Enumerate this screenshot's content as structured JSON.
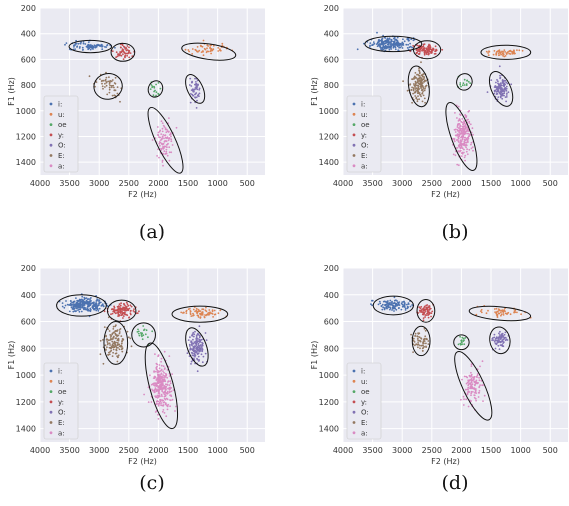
{
  "chart_data": [
    {
      "type": "scatter",
      "caption": "(a)",
      "xlabel": "F2 (Hz)",
      "ylabel": "F1 (Hz)",
      "xlim": [
        4000,
        200
      ],
      "ylim": [
        1500,
        200
      ],
      "xticks": [
        4000,
        3500,
        3000,
        2500,
        2000,
        1500,
        1000,
        500
      ],
      "yticks": [
        200,
        400,
        600,
        800,
        1000,
        1200,
        1400
      ],
      "grid": true,
      "legend_position": "lower-left",
      "series": [
        {
          "name": "i:",
          "color": "#4c72b0",
          "center": [
            3150,
            500
          ],
          "spread": [
            300,
            30
          ],
          "n": 90,
          "ellipse": [
            3150,
            500,
            360,
            48,
            0
          ]
        },
        {
          "name": "u:",
          "color": "#dd8452",
          "center": [
            1150,
            520
          ],
          "spread": [
            350,
            40
          ],
          "n": 55,
          "ellipse": [
            1150,
            540,
            460,
            60,
            -8
          ]
        },
        {
          "name": "oe",
          "color": "#55a868",
          "center": [
            2050,
            830
          ],
          "spread": [
            90,
            50
          ],
          "n": 18,
          "ellipse": [
            2050,
            830,
            120,
            65,
            -20
          ]
        },
        {
          "name": "y:",
          "color": "#c44e52",
          "center": [
            2600,
            540
          ],
          "spread": [
            170,
            45
          ],
          "n": 60,
          "ellipse": [
            2600,
            545,
            200,
            70,
            0
          ]
        },
        {
          "name": "O:",
          "color": "#8172b3",
          "center": [
            1380,
            830
          ],
          "spread": [
            80,
            90
          ],
          "n": 55,
          "ellipse": [
            1380,
            830,
            130,
            120,
            25
          ]
        },
        {
          "name": "E:",
          "color": "#937860",
          "center": [
            2850,
            810
          ],
          "spread": [
            190,
            80
          ],
          "n": 55,
          "ellipse": [
            2850,
            810,
            240,
            100,
            10
          ]
        },
        {
          "name": "a:",
          "color": "#da8bc3",
          "center": [
            1900,
            1230
          ],
          "spread": [
            130,
            140
          ],
          "n": 100,
          "ellipse": [
            1880,
            1230,
            160,
            280,
            25
          ]
        }
      ]
    },
    {
      "type": "scatter",
      "caption": "(b)",
      "xlabel": "F2 (Hz)",
      "ylabel": "F1 (Hz)",
      "xlim": [
        4000,
        200
      ],
      "ylim": [
        1500,
        200
      ],
      "xticks": [
        4000,
        3500,
        3000,
        2500,
        2000,
        1500,
        1000,
        500
      ],
      "yticks": [
        200,
        400,
        600,
        800,
        1000,
        1200,
        1400
      ],
      "grid": true,
      "legend_position": "lower-left",
      "series": [
        {
          "name": "i:",
          "color": "#4c72b0",
          "center": [
            3200,
            480
          ],
          "spread": [
            330,
            45
          ],
          "n": 230,
          "ellipse": [
            3150,
            480,
            480,
            60,
            0
          ]
        },
        {
          "name": "u:",
          "color": "#dd8452",
          "center": [
            1250,
            545
          ],
          "spread": [
            280,
            25
          ],
          "n": 60,
          "ellipse": [
            1250,
            545,
            420,
            55,
            0
          ]
        },
        {
          "name": "oe",
          "color": "#55a868",
          "center": [
            1950,
            780
          ],
          "spread": [
            90,
            40
          ],
          "n": 15,
          "ellipse": [
            1950,
            775,
            130,
            65,
            -20
          ]
        },
        {
          "name": "y:",
          "color": "#c44e52",
          "center": [
            2600,
            525
          ],
          "spread": [
            200,
            35
          ],
          "n": 120,
          "ellipse": [
            2580,
            525,
            230,
            70,
            0
          ]
        },
        {
          "name": "O:",
          "color": "#8172b3",
          "center": [
            1330,
            825
          ],
          "spread": [
            110,
            85
          ],
          "n": 140,
          "ellipse": [
            1330,
            830,
            160,
            145,
            25
          ]
        },
        {
          "name": "E:",
          "color": "#937860",
          "center": [
            2720,
            800
          ],
          "spread": [
            130,
            100
          ],
          "n": 150,
          "ellipse": [
            2720,
            810,
            170,
            160,
            10
          ]
        },
        {
          "name": "a:",
          "color": "#da8bc3",
          "center": [
            1980,
            1200
          ],
          "spread": [
            130,
            150
          ],
          "n": 240,
          "ellipse": [
            2000,
            1200,
            170,
            280,
            20
          ]
        }
      ]
    },
    {
      "type": "scatter",
      "caption": "(c)",
      "xlabel": "F2 (Hz)",
      "ylabel": "F1 (Hz)",
      "xlim": [
        4000,
        200
      ],
      "ylim": [
        1500,
        200
      ],
      "xticks": [
        4000,
        3500,
        3000,
        2500,
        2000,
        1500,
        1000,
        500
      ],
      "yticks": [
        200,
        400,
        600,
        800,
        1000,
        1200,
        1400
      ],
      "grid": true,
      "legend_position": "lower-left",
      "series": [
        {
          "name": "i:",
          "color": "#4c72b0",
          "center": [
            3250,
            475
          ],
          "spread": [
            300,
            45
          ],
          "n": 260,
          "ellipse": [
            3300,
            480,
            420,
            80,
            0
          ]
        },
        {
          "name": "u:",
          "color": "#dd8452",
          "center": [
            1300,
            535
          ],
          "spread": [
            300,
            35
          ],
          "n": 80,
          "ellipse": [
            1300,
            545,
            470,
            60,
            0
          ]
        },
        {
          "name": "oe",
          "color": "#55a868",
          "center": [
            2250,
            690
          ],
          "spread": [
            120,
            60
          ],
          "n": 20,
          "ellipse": [
            2250,
            700,
            200,
            90,
            0
          ]
        },
        {
          "name": "y:",
          "color": "#c44e52",
          "center": [
            2620,
            520
          ],
          "spread": [
            180,
            45
          ],
          "n": 120,
          "ellipse": [
            2620,
            520,
            240,
            80,
            0
          ]
        },
        {
          "name": "O:",
          "color": "#8172b3",
          "center": [
            1350,
            790
          ],
          "spread": [
            120,
            100
          ],
          "n": 160,
          "ellipse": [
            1350,
            790,
            160,
            150,
            20
          ]
        },
        {
          "name": "E:",
          "color": "#937860",
          "center": [
            2720,
            750
          ],
          "spread": [
            170,
            110
          ],
          "n": 140,
          "ellipse": [
            2720,
            760,
            200,
            160,
            0
          ]
        },
        {
          "name": "a:",
          "color": "#da8bc3",
          "center": [
            1950,
            1080
          ],
          "spread": [
            160,
            160
          ],
          "n": 320,
          "ellipse": [
            1950,
            1080,
            200,
            330,
            15
          ]
        }
      ]
    },
    {
      "type": "scatter",
      "caption": "(d)",
      "xlabel": "F2 (Hz)",
      "ylabel": "F1 (Hz)",
      "xlim": [
        4000,
        200
      ],
      "ylim": [
        1500,
        200
      ],
      "xticks": [
        4000,
        3500,
        3000,
        2500,
        2000,
        1500,
        1000,
        500
      ],
      "yticks": [
        200,
        400,
        600,
        800,
        1000,
        1200,
        1400
      ],
      "grid": true,
      "legend_position": "lower-left",
      "series": [
        {
          "name": "i:",
          "color": "#4c72b0",
          "center": [
            3150,
            475
          ],
          "spread": [
            280,
            40
          ],
          "n": 120,
          "ellipse": [
            3150,
            480,
            340,
            70,
            0
          ]
        },
        {
          "name": "u:",
          "color": "#dd8452",
          "center": [
            1350,
            530
          ],
          "spread": [
            330,
            35
          ],
          "n": 55,
          "ellipse": [
            1350,
            540,
            520,
            50,
            -5
          ]
        },
        {
          "name": "oe",
          "color": "#55a868",
          "center": [
            2000,
            755
          ],
          "spread": [
            70,
            40
          ],
          "n": 15,
          "ellipse": [
            2000,
            755,
            130,
            55,
            0
          ]
        },
        {
          "name": "y:",
          "color": "#c44e52",
          "center": [
            2600,
            525
          ],
          "spread": [
            130,
            45
          ],
          "n": 70,
          "ellipse": [
            2600,
            520,
            150,
            85,
            0
          ]
        },
        {
          "name": "O:",
          "color": "#8172b3",
          "center": [
            1350,
            740
          ],
          "spread": [
            120,
            60
          ],
          "n": 80,
          "ellipse": [
            1350,
            740,
            170,
            100,
            10
          ]
        },
        {
          "name": "E:",
          "color": "#937860",
          "center": [
            2680,
            740
          ],
          "spread": [
            120,
            70
          ],
          "n": 60,
          "ellipse": [
            2680,
            745,
            150,
            110,
            0
          ]
        },
        {
          "name": "a:",
          "color": "#da8bc3",
          "center": [
            1800,
            1080
          ],
          "spread": [
            150,
            140
          ],
          "n": 130,
          "ellipse": [
            1800,
            1080,
            180,
            280,
            25
          ]
        }
      ]
    }
  ]
}
